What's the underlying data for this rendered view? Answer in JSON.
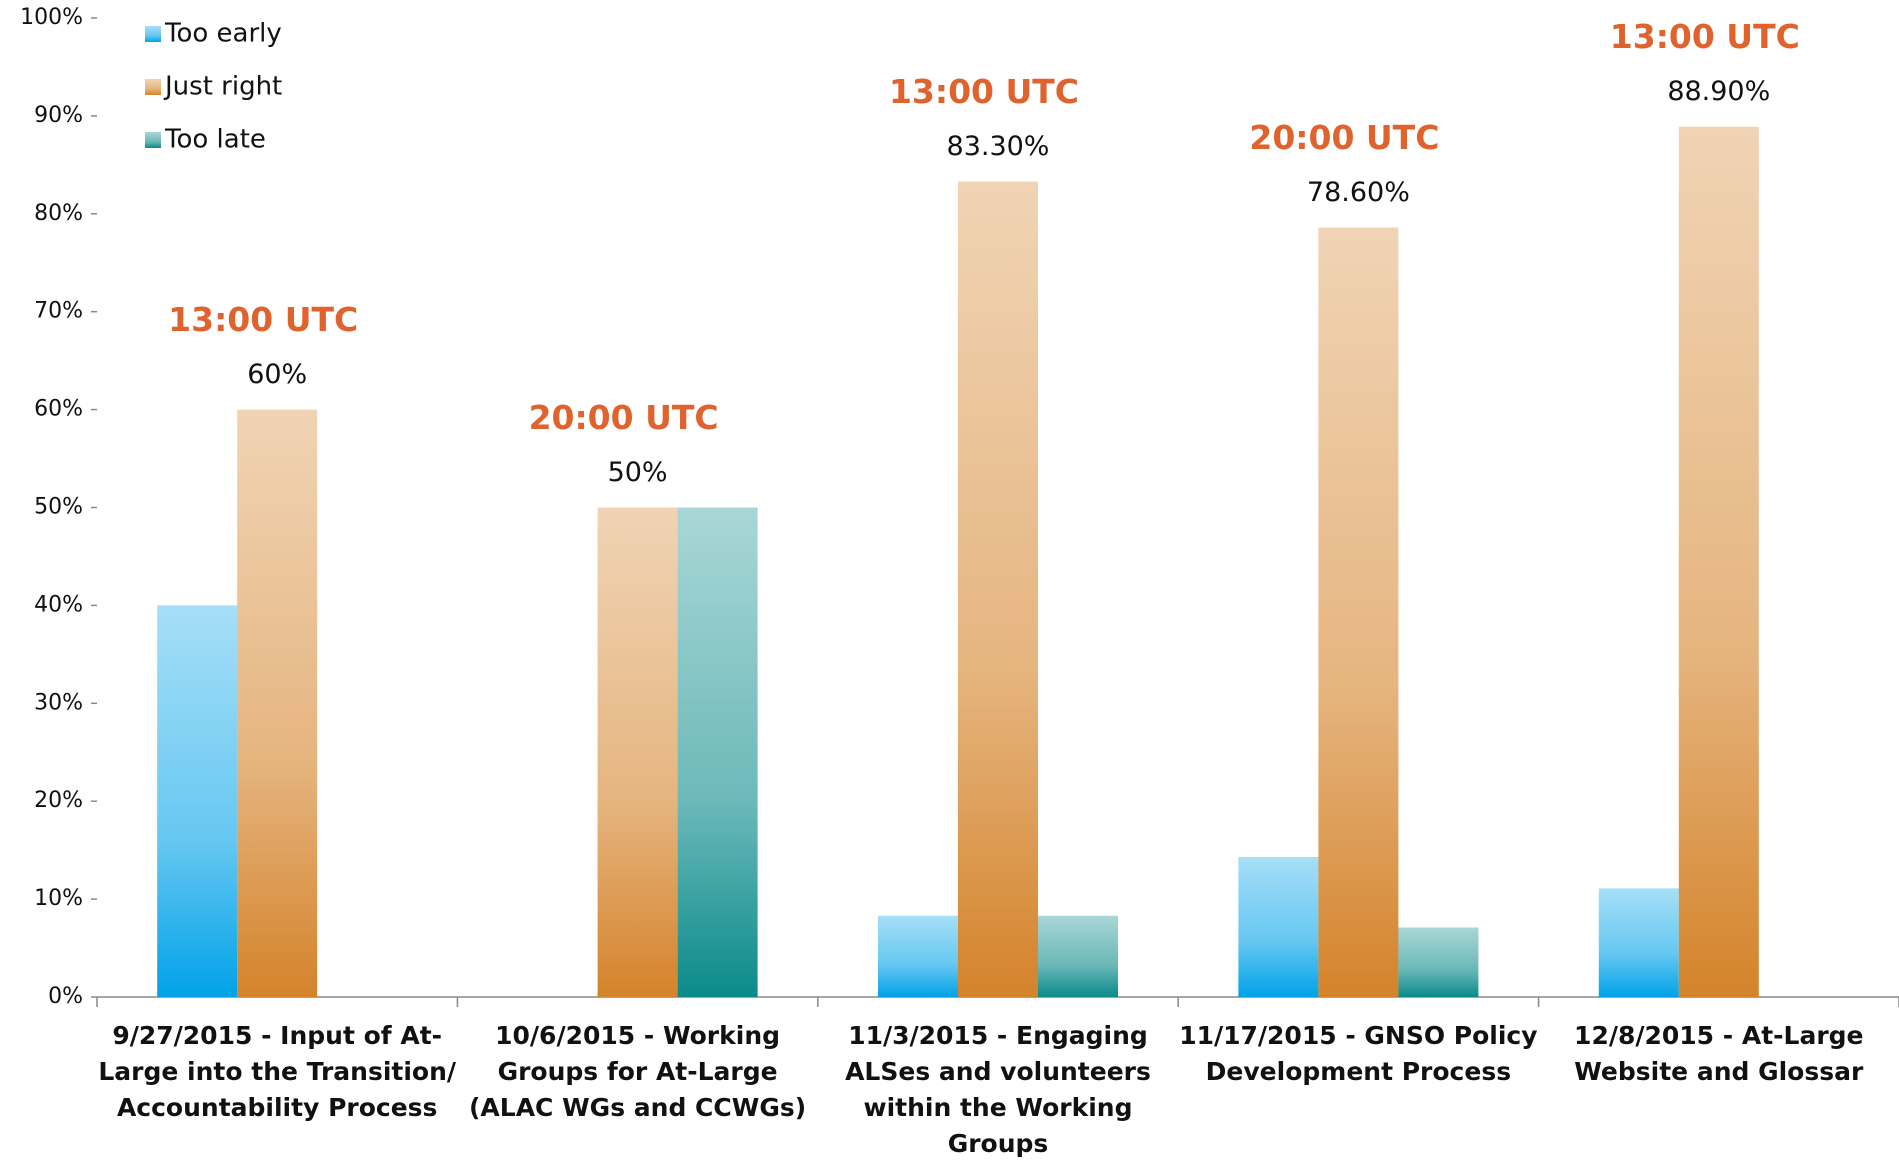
{
  "chart_data": {
    "type": "bar",
    "categories": [
      "9/27/2015 - Input of At-Large into the Transition/ Accountability Process",
      "10/6/2015 - Working Groups for At-Large (ALAC WGs and CCWGs)",
      "11/3/2015 - Engaging ALSes and volunteers within the Working Groups",
      "11/17/2015 - GNSO Policy Development Process",
      "12/8/2015 - At-Large Website and Glossar"
    ],
    "series": [
      {
        "name": "Too early",
        "color": "#00a2e8",
        "values": [
          40,
          null,
          8.3,
          14.3,
          11.1
        ]
      },
      {
        "name": "Just right",
        "color": "#d4832a",
        "values": [
          60,
          50,
          83.3,
          78.6,
          88.9
        ],
        "value_labels": [
          "60%",
          "50%",
          "83.30%",
          "78.60%",
          "88.90%"
        ]
      },
      {
        "name": "Too late",
        "color": "#0a8a8a",
        "values": [
          null,
          50,
          8.3,
          7.1,
          null
        ]
      }
    ],
    "annotations": [
      "13:00 UTC",
      "20:00 UTC",
      "13:00 UTC",
      "20:00 UTC",
      "13:00 UTC"
    ],
    "annotation_color": "#e0622c",
    "ylim": [
      0,
      100
    ],
    "yticks": [
      {
        "value": 0,
        "label": "0%"
      },
      {
        "value": 10,
        "label": "10%"
      },
      {
        "value": 20,
        "label": "20%"
      },
      {
        "value": 30,
        "label": "30%"
      },
      {
        "value": 40,
        "label": "40%"
      },
      {
        "value": 50,
        "label": "50%"
      },
      {
        "value": 60,
        "label": "60%"
      },
      {
        "value": 70,
        "label": "70%"
      },
      {
        "value": 80,
        "label": "80%"
      },
      {
        "value": 90,
        "label": "90%"
      },
      {
        "value": 100,
        "label": "100%"
      }
    ],
    "grid": false,
    "legend": "top-left"
  }
}
